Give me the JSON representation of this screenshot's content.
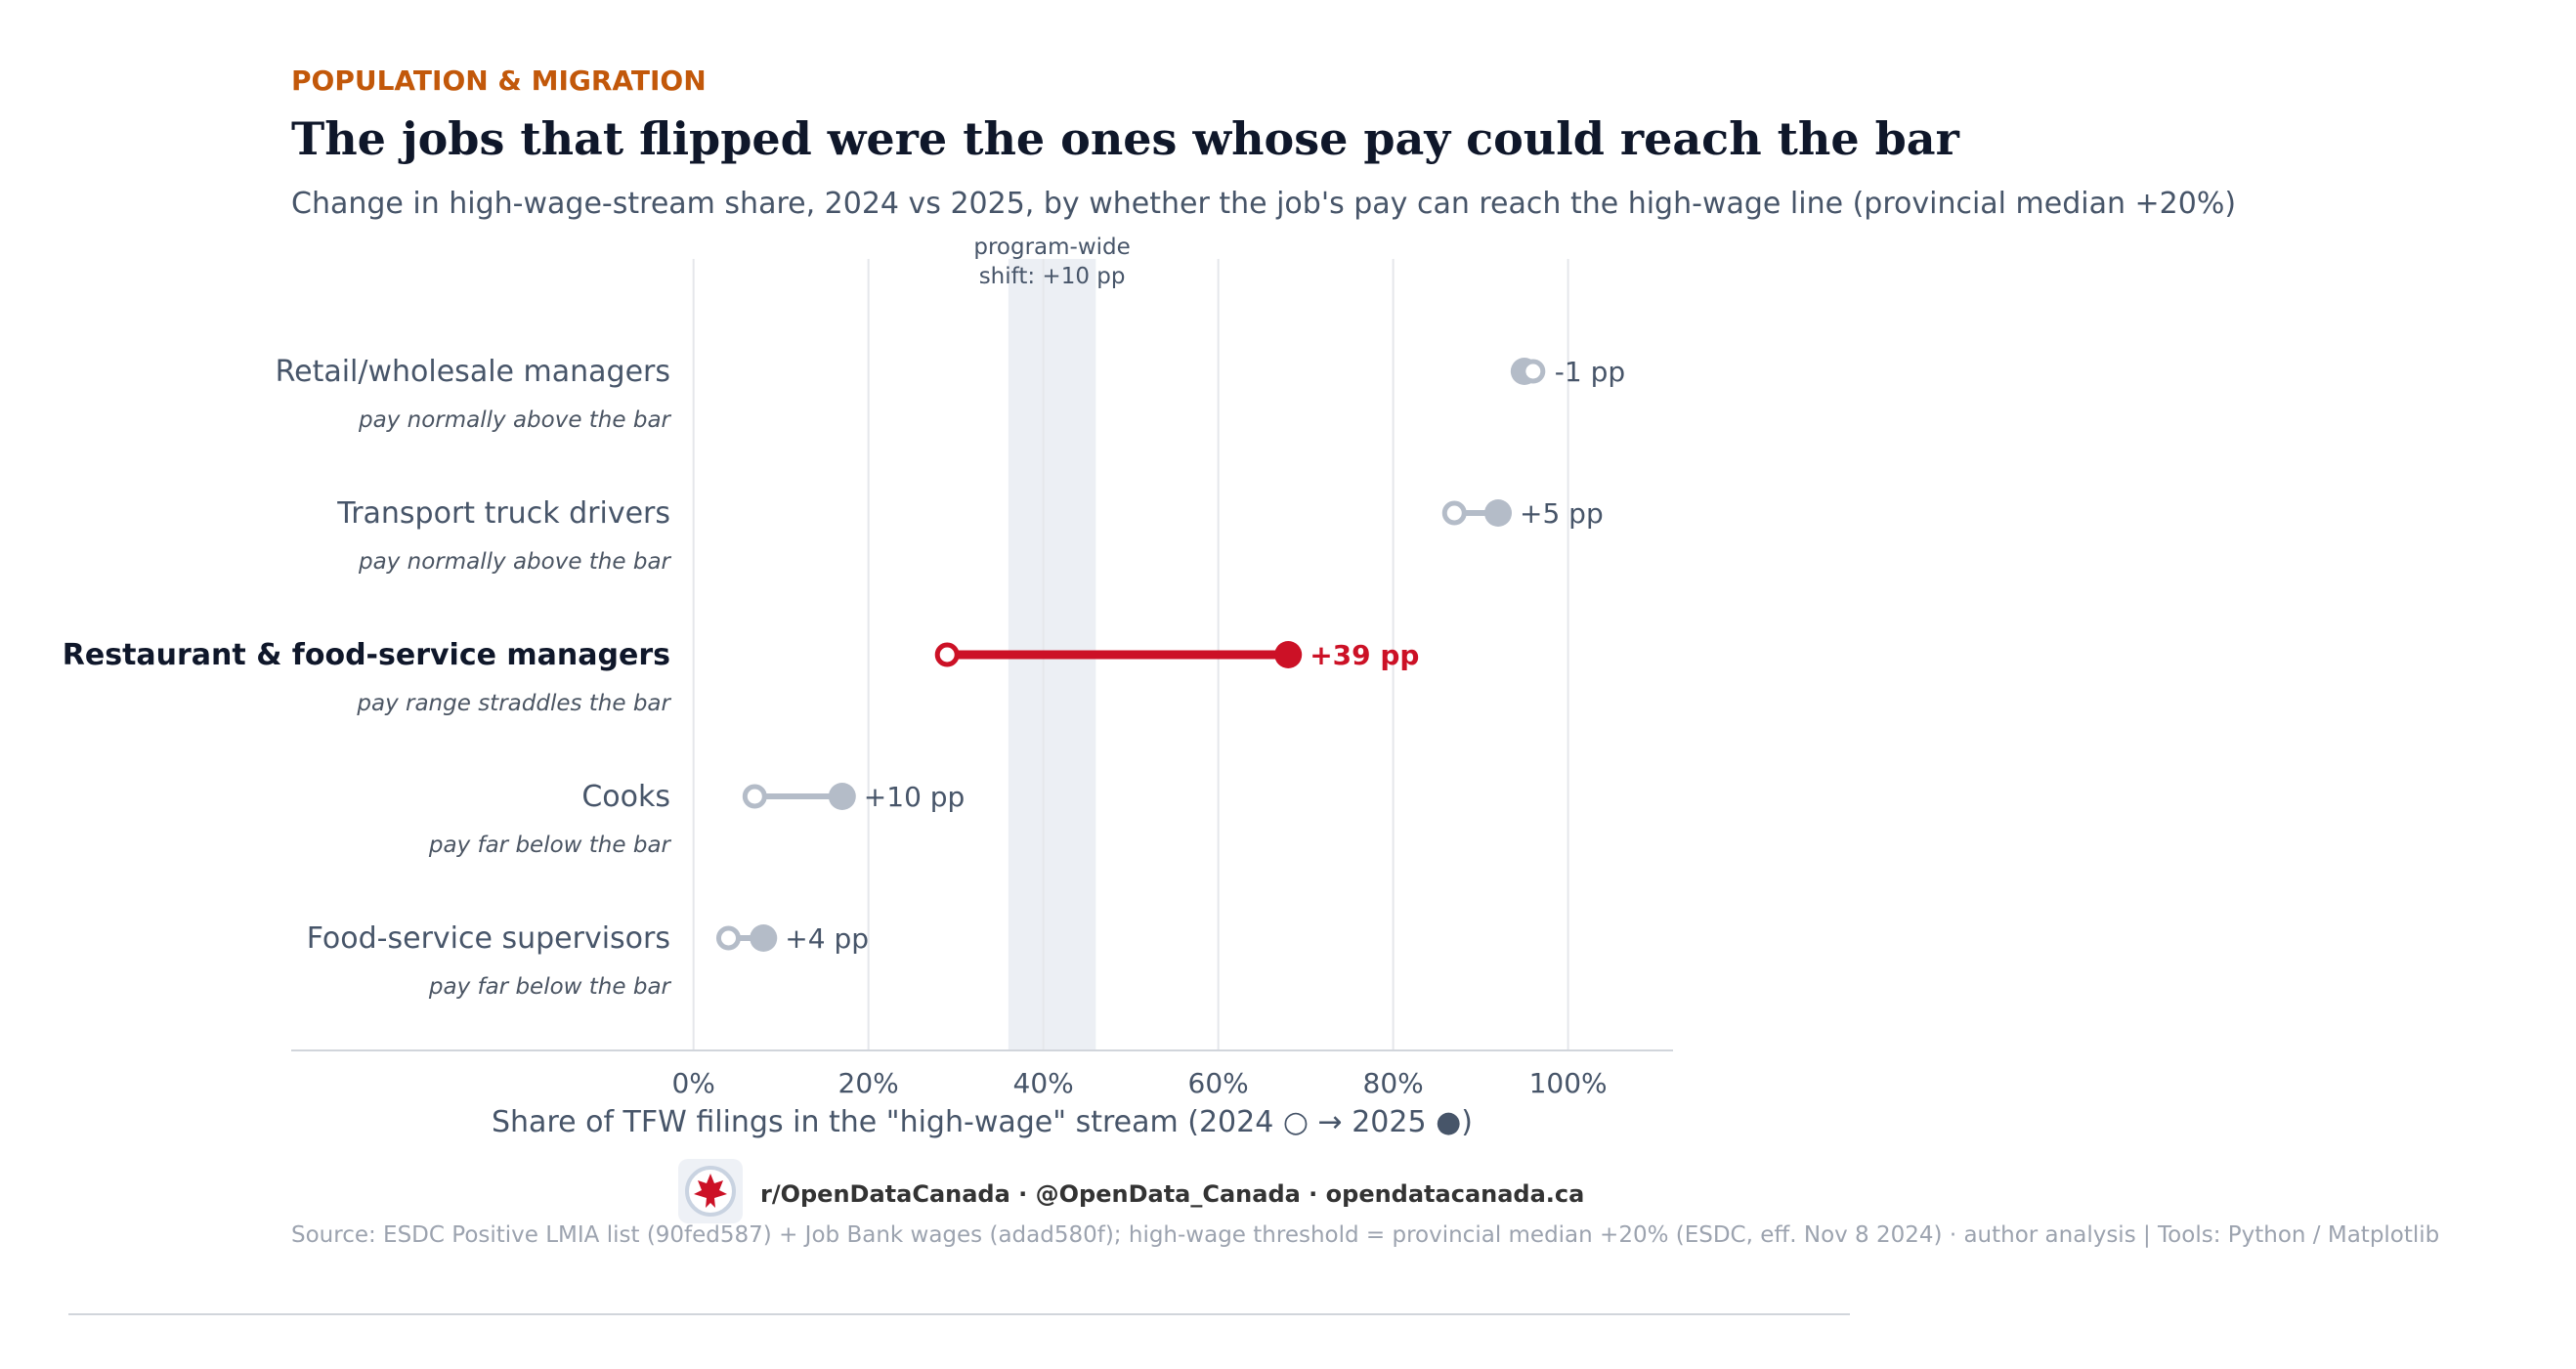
{
  "header": {
    "eyebrow": "POPULATION & MIGRATION",
    "title": "The jobs that flipped were the ones whose pay could reach the bar",
    "subtitle": "Change in high-wage-stream share, 2024 vs 2025, by whether the job's pay can reach the high-wage line (provincial median +20%)"
  },
  "colors": {
    "eyebrow": "#c2580a",
    "highlight": "#cc1126",
    "muted": "#b4bcc8",
    "band": "#eceff4",
    "grid": "#e5e7eb"
  },
  "chart_data": {
    "type": "dumbbell",
    "xlabel": "Share of TFW filings in the \"high-wage\" stream  (2024 ○ → 2025 ●)",
    "xlim": [
      -46,
      112
    ],
    "xticks": [
      0,
      20,
      40,
      60,
      80,
      100
    ],
    "xtick_labels": [
      "0%",
      "20%",
      "40%",
      "60%",
      "80%",
      "100%"
    ],
    "grid": true,
    "band": {
      "from": 36,
      "to": 46,
      "label_line1": "program-wide",
      "label_line2": "shift: +10 pp"
    },
    "rows": [
      {
        "label": "Retail/wholesale managers",
        "note": "pay normally above the bar",
        "v2024": 96,
        "v2025": 95,
        "delta_label": "-1 pp",
        "highlight": false
      },
      {
        "label": "Transport truck drivers",
        "note": "pay normally above the bar",
        "v2024": 87,
        "v2025": 92,
        "delta_label": "+5 pp",
        "highlight": false
      },
      {
        "label": "Restaurant & food-service managers",
        "note": "pay range straddles the bar",
        "v2024": 29,
        "v2025": 68,
        "delta_label": "+39 pp",
        "highlight": true
      },
      {
        "label": "Cooks",
        "note": "pay far below the bar",
        "v2024": 7,
        "v2025": 17,
        "delta_label": "+10 pp",
        "highlight": false
      },
      {
        "label": "Food-service supervisors",
        "note": "pay far below the bar",
        "v2024": 4,
        "v2025": 8,
        "delta_label": "+4 pp",
        "highlight": false
      }
    ]
  },
  "footer": {
    "credit": "r/OpenDataCanada  ·  @OpenData_Canada  ·  opendatacanada.ca",
    "source": "Source: ESDC Positive LMIA list (90fed587) + Job Bank wages (adad580f); high-wage threshold = provincial median +20% (ESDC, eff. Nov 8 2024) · author analysis  |  Tools: Python / Matplotlib",
    "logo_icon": "maple-leaf-icon"
  }
}
